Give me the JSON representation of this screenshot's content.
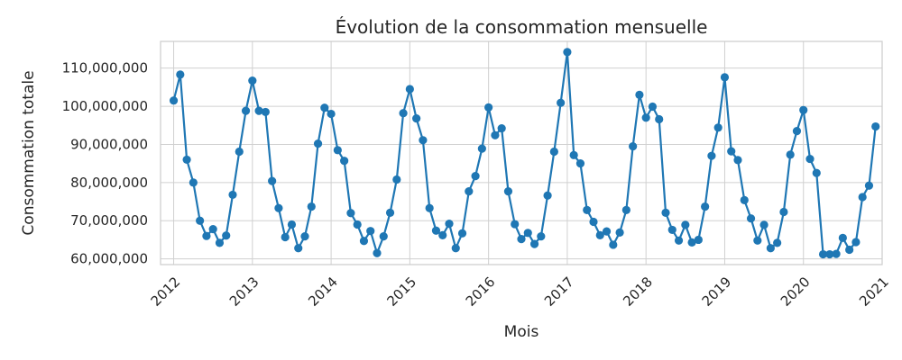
{
  "chart_data": {
    "type": "line",
    "title": "Évolution de la consommation mensuelle",
    "xlabel": "Mois",
    "ylabel": "Consommation totale",
    "x_ticks": [
      "2012",
      "2013",
      "2014",
      "2015",
      "2016",
      "2017",
      "2018",
      "2019",
      "2020",
      "2021"
    ],
    "y_ticks": [
      "60,000,000",
      "70,000,000",
      "80,000,000",
      "90,000,000",
      "100,000,000",
      "110,000,000"
    ],
    "y_tick_values": [
      60000000,
      70000000,
      80000000,
      90000000,
      100000000,
      110000000
    ],
    "xlim": [
      "2011-11",
      "2021-01"
    ],
    "ylim": [
      58500000,
      117000000
    ],
    "grid": true,
    "series": [
      {
        "color": "#1f77b4",
        "x": [
          "2012-01",
          "2012-02",
          "2012-03",
          "2012-04",
          "2012-05",
          "2012-06",
          "2012-07",
          "2012-08",
          "2012-09",
          "2012-10",
          "2012-11",
          "2012-12",
          "2013-01",
          "2013-02",
          "2013-03",
          "2013-04",
          "2013-05",
          "2013-06",
          "2013-07",
          "2013-08",
          "2013-09",
          "2013-10",
          "2013-11",
          "2013-12",
          "2014-01",
          "2014-02",
          "2014-03",
          "2014-04",
          "2014-05",
          "2014-06",
          "2014-07",
          "2014-08",
          "2014-09",
          "2014-10",
          "2014-11",
          "2014-12",
          "2015-01",
          "2015-02",
          "2015-03",
          "2015-04",
          "2015-05",
          "2015-06",
          "2015-07",
          "2015-08",
          "2015-09",
          "2015-10",
          "2015-11",
          "2015-12",
          "2016-01",
          "2016-02",
          "2016-03",
          "2016-04",
          "2016-05",
          "2016-06",
          "2016-07",
          "2016-08",
          "2016-09",
          "2016-10",
          "2016-11",
          "2016-12",
          "2017-01",
          "2017-02",
          "2017-03",
          "2017-04",
          "2017-05",
          "2017-06",
          "2017-07",
          "2017-08",
          "2017-09",
          "2017-10",
          "2017-11",
          "2017-12",
          "2018-01",
          "2018-02",
          "2018-03",
          "2018-04",
          "2018-05",
          "2018-06",
          "2018-07",
          "2018-08",
          "2018-09",
          "2018-10",
          "2018-11",
          "2018-12",
          "2019-01",
          "2019-02",
          "2019-03",
          "2019-04",
          "2019-05",
          "2019-06",
          "2019-07",
          "2019-08",
          "2019-09",
          "2019-10",
          "2019-11",
          "2019-12",
          "2020-01",
          "2020-02",
          "2020-03",
          "2020-04",
          "2020-05",
          "2020-06",
          "2020-07",
          "2020-08",
          "2020-09",
          "2020-10",
          "2020-11",
          "2020-12"
        ],
        "values": [
          101500000,
          108300000,
          86000000,
          80000000,
          70000000,
          66000000,
          67800000,
          64200000,
          66100000,
          76800000,
          88100000,
          98800000,
          106700000,
          98800000,
          98500000,
          80400000,
          73300000,
          65700000,
          69000000,
          62800000,
          65900000,
          73700000,
          90200000,
          99600000,
          98000000,
          88500000,
          85700000,
          72000000,
          69000000,
          64700000,
          67300000,
          61500000,
          65900000,
          72100000,
          80800000,
          98200000,
          104500000,
          96800000,
          91100000,
          73300000,
          67400000,
          66200000,
          69200000,
          62800000,
          66700000,
          77700000,
          81700000,
          88900000,
          99700000,
          92400000,
          94200000,
          77700000,
          69100000,
          65200000,
          66800000,
          63900000,
          65900000,
          76600000,
          88100000,
          100900000,
          114200000,
          87200000,
          85000000,
          72800000,
          69700000,
          66200000,
          67200000,
          63700000,
          66900000,
          72800000,
          89500000,
          103000000,
          97000000,
          99900000,
          96600000,
          72100000,
          67600000,
          64800000,
          68900000,
          64300000,
          65000000,
          73700000,
          87000000,
          94400000,
          107600000,
          88200000,
          85900000,
          75400000,
          70600000,
          64800000,
          68900000,
          62800000,
          64200000,
          72300000,
          87300000,
          93500000,
          99000000,
          86200000,
          82500000,
          61200000,
          61200000,
          61300000,
          65500000,
          62400000,
          64400000,
          76200000,
          79200000,
          94700000
        ]
      }
    ]
  }
}
